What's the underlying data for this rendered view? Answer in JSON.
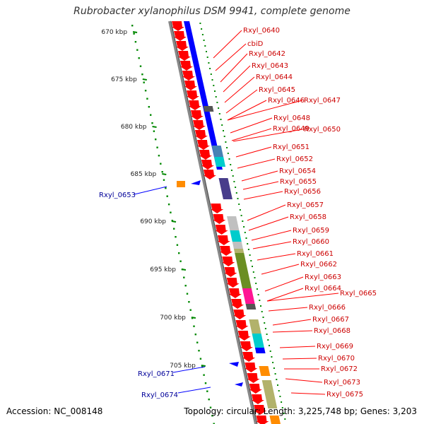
{
  "title": "Rubrobacter xylanophilus DSM 9941, complete genome",
  "scale_labels": [
    "670 kbp",
    "675 kbp",
    "680 kbp",
    "685 kbp",
    "690 kbp",
    "695 kbp",
    "700 kbp",
    "705 kbp"
  ],
  "right_labels": [
    "Rxyl_0640",
    "cbiD",
    "Rxyl_0642",
    "Rxyl_0643",
    "Rxyl_0644",
    "Rxyl_0645",
    "Rxyl_0646",
    "Rxyl_0647",
    "Rxyl_0648",
    "Rxyl_0649",
    "Rxyl_0650",
    "Rxyl_0651",
    "Rxyl_0652",
    "Rxyl_0654",
    "Rxyl_0655",
    "Rxyl_0656",
    "Rxyl_0657",
    "Rxyl_0658",
    "Rxyl_0659",
    "Rxyl_0660",
    "Rxyl_0661",
    "Rxyl_0662",
    "Rxyl_0663",
    "Rxyl_0664",
    "Rxyl_0665",
    "Rxyl_0666",
    "Rxyl_0667",
    "Rxyl_0668",
    "Rxyl_0669",
    "Rxyl_0670",
    "Rxyl_0672",
    "Rxyl_0673",
    "Rxyl_0675"
  ],
  "left_labels": [
    "Rxyl_0653",
    "Rxyl_0671",
    "Rxyl_0674"
  ],
  "footer": {
    "accession": "Accession: NC_008148",
    "topology": "Topology: circular; Length: 3,225,748 bp; Genes: 3,203"
  },
  "colors": {
    "forward_cds": "#ff0000",
    "reverse_cds": "#0000ff",
    "right_label": "#cc0000",
    "left_label": "#000099",
    "backbone": "#888888",
    "scale_dots": "#008800"
  },
  "cog_colors": [
    "#0000ff",
    "#555555",
    "#4682b4",
    "#00cccc",
    "#483d8b",
    "#c0c0c0",
    "#b2b26b",
    "#6b8e23",
    "#ff1493",
    "#ff8c00"
  ]
}
